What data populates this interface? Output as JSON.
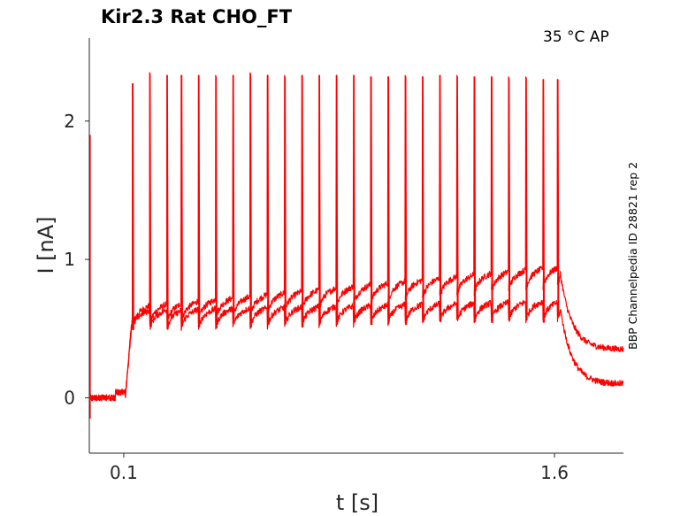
{
  "chart_data": {
    "type": "line",
    "title": "Kir2.3  Rat  CHO_FT",
    "annotation": "35 °C  AP",
    "side_label": "BBP Channelpedia ID 28821 rep 2",
    "xlabel": "t [s]",
    "ylabel": "I [nA]",
    "xlim": [
      -0.02,
      1.84
    ],
    "ylim": [
      -0.4,
      2.6
    ],
    "x_ticks": [
      {
        "value": 0.1,
        "label": "0.1"
      },
      {
        "value": 1.6,
        "label": "1.6"
      }
    ],
    "y_ticks": [
      {
        "value": 0,
        "label": "0"
      },
      {
        "value": 1,
        "label": "1"
      },
      {
        "value": 2,
        "label": "2"
      }
    ],
    "grid": false,
    "color": "#ff0000",
    "stimulus": {
      "start": 0.105,
      "end": 1.62,
      "baseline": 0.0,
      "recovery_level": 0.35
    },
    "spike_times": [
      0.13,
      0.19,
      0.25,
      0.3,
      0.36,
      0.42,
      0.48,
      0.54,
      0.6,
      0.66,
      0.72,
      0.78,
      0.84,
      0.9,
      0.96,
      1.02,
      1.08,
      1.14,
      1.2,
      1.26,
      1.32,
      1.38,
      1.44,
      1.5,
      1.56,
      1.61
    ],
    "series": [
      {
        "level_start": 0.6,
        "level_end": 0.9,
        "tail_level": 0.35,
        "spike_peaks": [
          2.27,
          2.35,
          2.33,
          2.33,
          2.33,
          2.33,
          2.33,
          2.35,
          2.33,
          2.33,
          2.33,
          2.33,
          2.33,
          2.33,
          2.32,
          2.32,
          2.33,
          2.32,
          2.33,
          2.33,
          2.32,
          2.32,
          2.32,
          2.32,
          2.3,
          2.3
        ]
      },
      {
        "level_start": 0.58,
        "level_end": 0.65,
        "tail_level": 0.1,
        "spike_peaks": [
          2.27,
          2.34,
          2.33,
          2.33,
          2.33,
          2.32,
          2.33,
          2.34,
          2.33,
          2.32,
          2.33,
          2.33,
          2.33,
          2.33,
          2.32,
          2.32,
          2.32,
          2.32,
          2.33,
          2.32,
          2.32,
          2.32,
          2.31,
          2.31,
          2.3,
          2.3
        ]
      }
    ]
  }
}
